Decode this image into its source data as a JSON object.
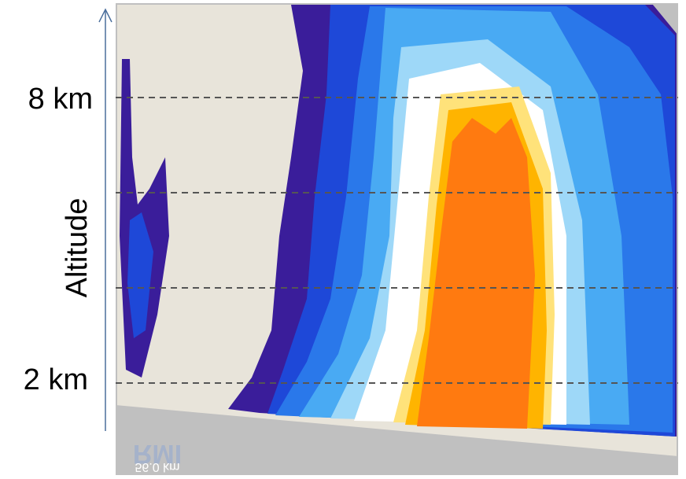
{
  "labels": {
    "upper_altitude": "8 km",
    "lower_altitude": "2 km",
    "axis_title": "Altitude"
  },
  "watermark": {
    "logo": "RMI",
    "distance": "56.0 km"
  }
}
